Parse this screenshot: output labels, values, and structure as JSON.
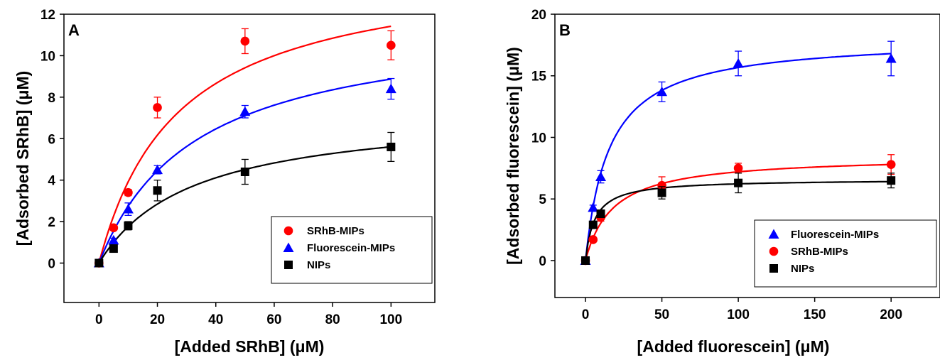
{
  "chart_data": [
    {
      "type": "scatter",
      "panel_label": "A",
      "xlabel": "[Added SRhB] (μM)",
      "ylabel": "[Adsorbed SRhB] (μM)",
      "xlim": [
        -12,
        115
      ],
      "ylim": [
        -1.9,
        12
      ],
      "xticks": [
        0,
        20,
        40,
        60,
        80,
        100
      ],
      "yticks": [
        0,
        2,
        4,
        6,
        8,
        10,
        12
      ],
      "legend_position": "bottom-right",
      "series": [
        {
          "name": "SRhB-MIPs",
          "color": "#ff0000",
          "marker": "circle",
          "x": [
            0,
            5,
            10,
            20,
            50,
            100
          ],
          "y": [
            0,
            1.7,
            3.4,
            7.5,
            10.7,
            10.5
          ],
          "yerr": [
            0,
            0.1,
            0.15,
            0.5,
            0.6,
            0.7
          ],
          "fit": {
            "model": "langmuir",
            "qmax": 14.5,
            "kd": 27
          }
        },
        {
          "name": "Fluorescein-MIPs",
          "color": "#0000ff",
          "marker": "triangle",
          "x": [
            0,
            5,
            10,
            20,
            50,
            100
          ],
          "y": [
            0,
            1.1,
            2.6,
            4.5,
            7.3,
            8.4
          ],
          "yerr": [
            0,
            0.1,
            0.3,
            0.2,
            0.3,
            0.5
          ],
          "fit": {
            "model": "langmuir",
            "qmax": 11.8,
            "kd": 33
          }
        },
        {
          "name": "NIPs",
          "color": "#000000",
          "marker": "square",
          "x": [
            0,
            5,
            10,
            20,
            50,
            100
          ],
          "y": [
            0,
            0.7,
            1.8,
            3.5,
            4.4,
            5.6
          ],
          "yerr": [
            0,
            0.1,
            0.2,
            0.5,
            0.6,
            0.7
          ],
          "fit": {
            "model": "langmuir",
            "qmax": 7.4,
            "kd": 32
          }
        }
      ]
    },
    {
      "type": "scatter",
      "panel_label": "B",
      "xlabel": "[Added fluorescein] (μM)",
      "ylabel": "[Adsorbed fluorescein] (μM)",
      "xlim": [
        -20,
        232
      ],
      "ylim": [
        -3,
        20
      ],
      "xticks": [
        0,
        50,
        100,
        150,
        200
      ],
      "yticks": [
        0,
        5,
        10,
        15,
        20
      ],
      "legend_position": "bottom-right",
      "series": [
        {
          "name": "Fluorescein-MIPs",
          "color": "#0000ff",
          "marker": "triangle",
          "x": [
            0,
            5,
            10,
            50,
            100,
            200
          ],
          "y": [
            0,
            4.3,
            6.8,
            13.7,
            16.0,
            16.4
          ],
          "yerr": [
            0,
            0.2,
            0.5,
            0.8,
            1.0,
            1.4
          ],
          "fit": {
            "model": "langmuir",
            "qmax": 18.1,
            "kd": 15.5
          }
        },
        {
          "name": "SRhB-MIPs",
          "color": "#ff0000",
          "marker": "circle",
          "x": [
            0,
            5,
            10,
            50,
            100,
            200
          ],
          "y": [
            0,
            1.7,
            3.5,
            6.1,
            7.5,
            7.8
          ],
          "yerr": [
            0,
            0.1,
            0.3,
            0.7,
            0.4,
            0.8
          ],
          "fit": {
            "model": "langmuir",
            "qmax": 8.5,
            "kd": 18
          }
        },
        {
          "name": "NIPs",
          "color": "#000000",
          "marker": "square",
          "x": [
            0,
            5,
            10,
            50,
            100,
            200
          ],
          "y": [
            0,
            2.9,
            3.8,
            5.5,
            6.3,
            6.5
          ],
          "yerr": [
            0,
            0.2,
            0.3,
            0.5,
            0.8,
            0.6
          ],
          "fit": {
            "model": "langmuir",
            "qmax": 6.6,
            "kd": 6
          }
        }
      ]
    }
  ]
}
